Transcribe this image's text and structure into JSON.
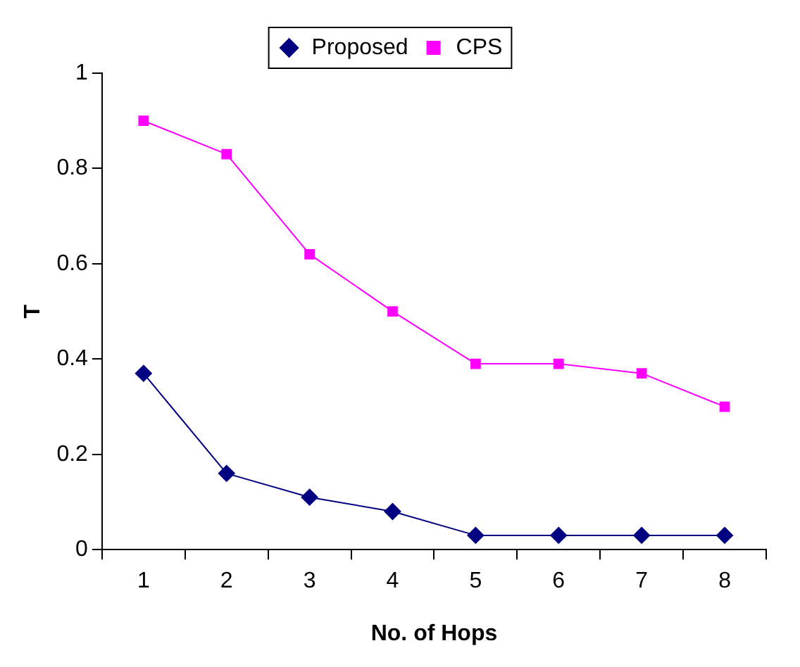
{
  "chart_data": {
    "type": "line",
    "xlabel": "No. of Hops",
    "ylabel": "T",
    "categories": [
      "1",
      "2",
      "3",
      "4",
      "5",
      "6",
      "7",
      "8"
    ],
    "series": [
      {
        "name": "Proposed",
        "color": "#000080",
        "marker": "diamond",
        "values": [
          0.37,
          0.16,
          0.11,
          0.08,
          0.03,
          0.03,
          0.03,
          0.03
        ]
      },
      {
        "name": "CPS",
        "color": "#ff00ff",
        "marker": "square",
        "values": [
          0.9,
          0.83,
          0.62,
          0.5,
          0.39,
          0.39,
          0.37,
          0.3
        ]
      }
    ],
    "ylim": [
      0,
      1
    ],
    "yticks": [
      0,
      0.2,
      0.4,
      0.6,
      0.8,
      1
    ],
    "grid": false,
    "legend": "top"
  }
}
